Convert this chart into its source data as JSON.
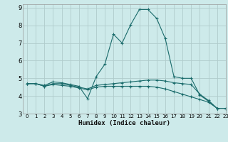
{
  "title": "",
  "xlabel": "Humidex (Indice chaleur)",
  "xlim": [
    -0.5,
    23
  ],
  "ylim": [
    3,
    9.2
  ],
  "yticks": [
    3,
    4,
    5,
    6,
    7,
    8,
    9
  ],
  "xticks": [
    0,
    1,
    2,
    3,
    4,
    5,
    6,
    7,
    8,
    9,
    10,
    11,
    12,
    13,
    14,
    15,
    16,
    17,
    18,
    19,
    20,
    21,
    22,
    23
  ],
  "bg_color": "#cdeaea",
  "grid_color": "#b0cccc",
  "line_color": "#1a6b6b",
  "lines": [
    {
      "x": [
        0,
        1,
        2,
        3,
        4,
        5,
        6,
        7,
        8,
        9,
        10,
        11,
        12,
        13,
        14,
        15,
        16,
        17,
        18,
        19,
        20,
        21,
        22,
        23
      ],
      "y": [
        4.7,
        4.7,
        4.6,
        4.8,
        4.75,
        4.65,
        4.55,
        3.85,
        5.1,
        5.8,
        7.5,
        7.0,
        8.05,
        8.9,
        8.9,
        8.4,
        7.25,
        5.1,
        5.0,
        5.0,
        4.05,
        3.7,
        3.3,
        3.3
      ]
    },
    {
      "x": [
        0,
        1,
        2,
        3,
        4,
        5,
        6,
        7,
        8,
        9,
        10,
        11,
        12,
        13,
        14,
        15,
        16,
        17,
        18,
        19,
        20,
        21,
        22,
        23
      ],
      "y": [
        4.7,
        4.7,
        4.55,
        4.7,
        4.7,
        4.6,
        4.5,
        4.4,
        4.6,
        4.65,
        4.7,
        4.75,
        4.8,
        4.85,
        4.9,
        4.9,
        4.85,
        4.75,
        4.7,
        4.65,
        4.1,
        3.75,
        3.3,
        3.3
      ]
    },
    {
      "x": [
        0,
        1,
        2,
        3,
        4,
        5,
        6,
        7,
        8,
        9,
        10,
        11,
        12,
        13,
        14,
        15,
        16,
        17,
        18,
        19,
        20,
        21,
        22,
        23
      ],
      "y": [
        4.7,
        4.7,
        4.55,
        4.65,
        4.6,
        4.55,
        4.45,
        4.35,
        4.5,
        4.55,
        4.55,
        4.55,
        4.55,
        4.55,
        4.55,
        4.5,
        4.4,
        4.25,
        4.1,
        3.95,
        3.8,
        3.65,
        3.3,
        3.3
      ]
    }
  ]
}
